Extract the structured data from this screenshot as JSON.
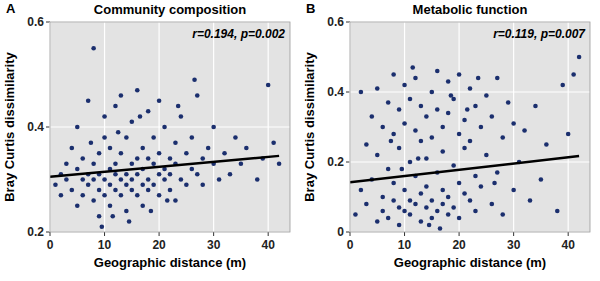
{
  "chart_data": [
    {
      "type": "scatter",
      "panel_label": "A",
      "title": "Community composition",
      "x_label": "Geographic distance (m)",
      "y_label": "Bray Curtis  dissimilarity",
      "annotation": "r=0.194, p=0.002",
      "xlim": [
        0,
        44
      ],
      "xticks": [
        0,
        10,
        20,
        30,
        40
      ],
      "ylim": [
        0.2,
        0.6
      ],
      "yticks": [
        0.2,
        0.4,
        0.6
      ],
      "grid": true,
      "series": [
        {
          "type": "scatter",
          "marker": "circle",
          "color": "#1b2f6e",
          "x": [
            1,
            2,
            2,
            3,
            3,
            4,
            4,
            5,
            5,
            5,
            6,
            6,
            6,
            7,
            7,
            7,
            8,
            8,
            8,
            8,
            9,
            9,
            9,
            9,
            10,
            10,
            10,
            10,
            11,
            11,
            11,
            11,
            12,
            12,
            12,
            12,
            13,
            13,
            13,
            13,
            14,
            14,
            14,
            14,
            15,
            15,
            15,
            15,
            16,
            16,
            16,
            16,
            17,
            17,
            17,
            17,
            18,
            18,
            18,
            18,
            19,
            19,
            19,
            20,
            20,
            20,
            20,
            21,
            21,
            21,
            22,
            22,
            22,
            23,
            23,
            23,
            24,
            24,
            25,
            25,
            26,
            26,
            27,
            27,
            28,
            28,
            29,
            30,
            30,
            31,
            32,
            33,
            34,
            35,
            36,
            38,
            39,
            40,
            41,
            42,
            9.5,
            14.5,
            18.5,
            23.5,
            12.5,
            7.5,
            26.5,
            16.5,
            21.5,
            11.5
          ],
          "values": [
            0.29,
            0.31,
            0.27,
            0.33,
            0.3,
            0.36,
            0.28,
            0.32,
            0.25,
            0.4,
            0.3,
            0.34,
            0.27,
            0.31,
            0.45,
            0.29,
            0.55,
            0.33,
            0.26,
            0.3,
            0.28,
            0.35,
            0.31,
            0.23,
            0.3,
            0.38,
            0.27,
            0.42,
            0.32,
            0.29,
            0.36,
            0.25,
            0.31,
            0.28,
            0.44,
            0.33,
            0.3,
            0.27,
            0.35,
            0.46,
            0.31,
            0.29,
            0.38,
            0.24,
            0.33,
            0.28,
            0.41,
            0.3,
            0.34,
            0.27,
            0.31,
            0.47,
            0.32,
            0.29,
            0.36,
            0.25,
            0.3,
            0.34,
            0.43,
            0.28,
            0.33,
            0.29,
            0.38,
            0.31,
            0.27,
            0.35,
            0.45,
            0.32,
            0.3,
            0.4,
            0.28,
            0.34,
            0.31,
            0.33,
            0.37,
            0.26,
            0.3,
            0.42,
            0.35,
            0.29,
            0.32,
            0.38,
            0.31,
            0.46,
            0.34,
            0.29,
            0.36,
            0.33,
            0.4,
            0.3,
            0.35,
            0.31,
            0.38,
            0.33,
            0.36,
            0.3,
            0.34,
            0.48,
            0.37,
            0.33,
            0.21,
            0.22,
            0.24,
            0.44,
            0.39,
            0.37,
            0.49,
            0.42,
            0.26,
            0.23
          ]
        },
        {
          "type": "line",
          "line_style": "solid",
          "color": "#000000",
          "x": [
            0,
            42
          ],
          "values": [
            0.305,
            0.345
          ]
        }
      ]
    },
    {
      "type": "scatter",
      "panel_label": "B",
      "title": "Metabolic function",
      "x_label": "Geographic distance (m)",
      "y_label": "Bray Curtis  dissimilarity",
      "annotation": "r=0.119, p=0.007",
      "xlim": [
        0,
        44
      ],
      "xticks": [
        0,
        10,
        20,
        30,
        40
      ],
      "ylim": [
        0,
        0.6
      ],
      "yticks": [
        0,
        0.2,
        0.4,
        0.6
      ],
      "grid": true,
      "series": [
        {
          "type": "scatter",
          "marker": "circle",
          "color": "#1b2f6e",
          "x": [
            1,
            2,
            2,
            3,
            3,
            4,
            4,
            5,
            5,
            5,
            6,
            6,
            6,
            7,
            7,
            7,
            8,
            8,
            8,
            8,
            9,
            9,
            9,
            9,
            10,
            10,
            10,
            10,
            11,
            11,
            11,
            11,
            12,
            12,
            12,
            12,
            13,
            13,
            13,
            13,
            14,
            14,
            14,
            14,
            15,
            15,
            15,
            15,
            16,
            16,
            16,
            16,
            17,
            17,
            17,
            17,
            18,
            18,
            18,
            18,
            19,
            19,
            19,
            20,
            20,
            20,
            20,
            21,
            21,
            21,
            22,
            22,
            22,
            23,
            23,
            23,
            24,
            24,
            25,
            25,
            26,
            26,
            27,
            27,
            28,
            28,
            29,
            30,
            30,
            31,
            32,
            33,
            34,
            35,
            36,
            38,
            39,
            40,
            41,
            42,
            9.5,
            14.5,
            18.5,
            23.5,
            12.5,
            7.5,
            26.5,
            16.5,
            21.5,
            11.5
          ],
          "values": [
            0.05,
            0.4,
            0.12,
            0.25,
            0.08,
            0.33,
            0.15,
            0.03,
            0.22,
            0.41,
            0.1,
            0.3,
            0.06,
            0.18,
            0.37,
            0.04,
            0.28,
            0.09,
            0.45,
            0.14,
            0.07,
            0.24,
            0.35,
            0.02,
            0.12,
            0.31,
            0.06,
            0.42,
            0.2,
            0.09,
            0.38,
            0.05,
            0.16,
            0.29,
            0.08,
            0.44,
            0.11,
            0.26,
            0.03,
            0.36,
            0.07,
            0.21,
            0.33,
            0.13,
            0.4,
            0.09,
            0.27,
            0.04,
            0.17,
            0.35,
            0.06,
            0.46,
            0.12,
            0.3,
            0.08,
            0.23,
            0.43,
            0.1,
            0.34,
            0.05,
            0.19,
            0.38,
            0.07,
            0.28,
            0.14,
            0.45,
            0.04,
            0.32,
            0.11,
            0.24,
            0.09,
            0.41,
            0.26,
            0.16,
            0.36,
            0.06,
            0.3,
            0.13,
            0.22,
            0.39,
            0.08,
            0.33,
            0.44,
            0.17,
            0.27,
            0.05,
            0.37,
            0.12,
            0.31,
            0.2,
            0.29,
            0.09,
            0.36,
            0.15,
            0.25,
            0.06,
            0.42,
            0.28,
            0.45,
            0.5,
            0.18,
            0.02,
            0.39,
            0.44,
            0.21,
            0.26,
            0.14,
            0.01,
            0.35,
            0.47
          ]
        },
        {
          "type": "line",
          "line_style": "solid",
          "color": "#000000",
          "x": [
            0,
            42
          ],
          "values": [
            0.142,
            0.217
          ]
        }
      ]
    }
  ]
}
